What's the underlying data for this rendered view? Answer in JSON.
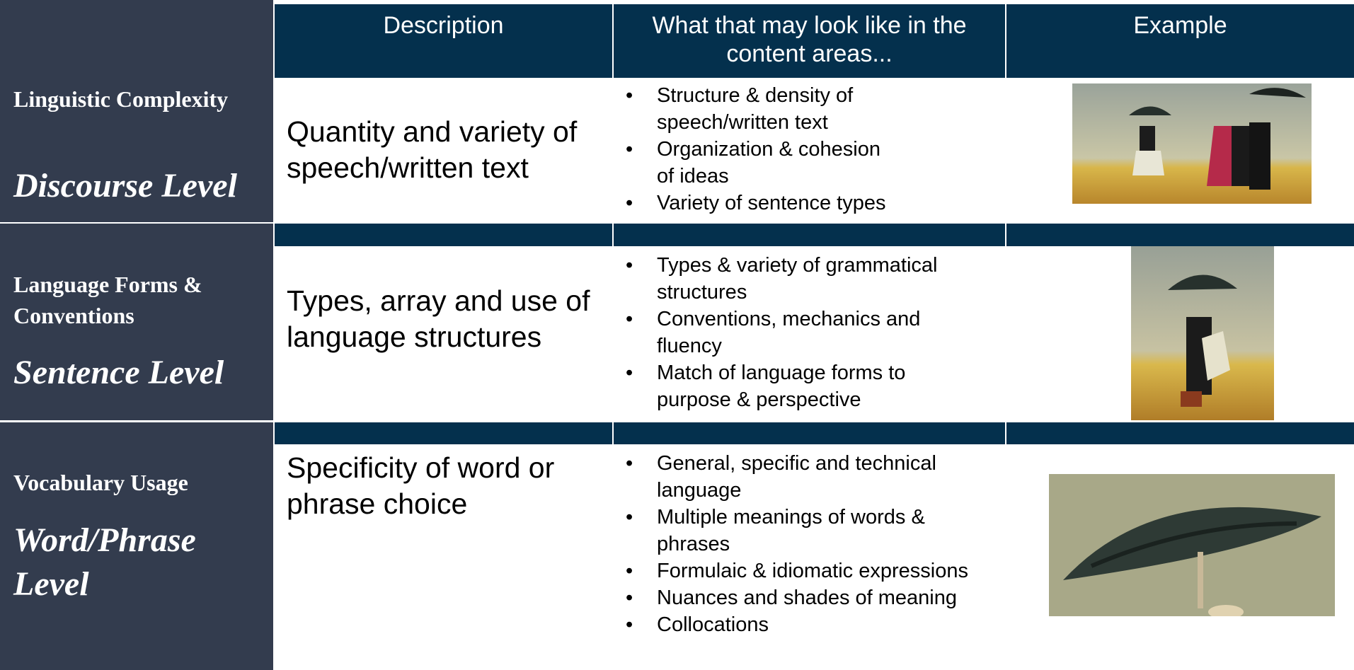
{
  "header": {
    "columns": [
      "Description",
      "What that may look like in the content areas...",
      "Example"
    ]
  },
  "rows": [
    {
      "dimension": "Linguistic Complexity",
      "level": "Discourse Level",
      "description": "Quantity and variety of speech/written text",
      "bullets": [
        "Structure & density of speech/written text",
        "Organization & cohesion of ideas",
        "Variety of sentence types"
      ]
    },
    {
      "dimension": "Language Forms & Conventions",
      "level": "Sentence Level",
      "description": "Types, array and use of language structures",
      "bullets": [
        "Types & variety of grammatical structures",
        "Conventions, mechanics and fluency",
        "Match of language forms to purpose & perspective"
      ]
    },
    {
      "dimension": "Vocabulary Usage",
      "level": "Word/Phrase Level",
      "description": "Specificity of word or phrase choice",
      "bullets": [
        "General, specific and technical language",
        "Multiple meanings of words & phrases",
        "Formulaic & idiomatic expressions",
        "Nuances and shades of meaning",
        "Collocations"
      ]
    }
  ]
}
